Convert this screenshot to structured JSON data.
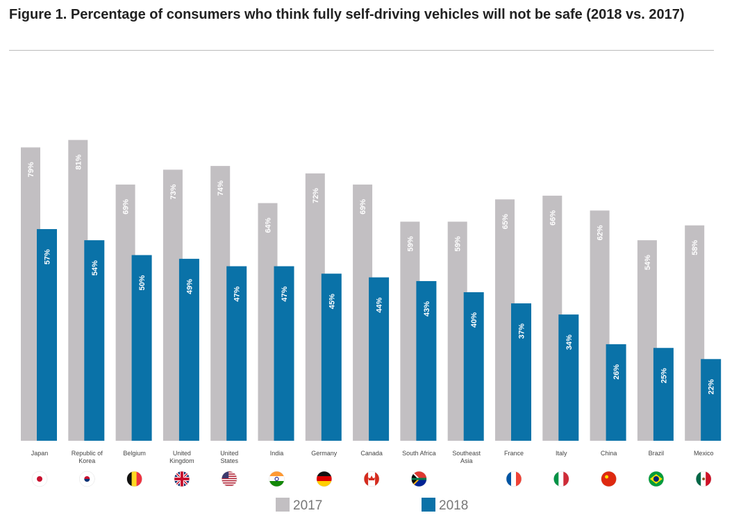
{
  "chart_data": {
    "type": "bar",
    "title": "Figure 1. Percentage of consumers who think fully self-driving vehicles will not be safe (2018 vs. 2017)",
    "categories": [
      "Japan",
      "Republic of Korea",
      "Belgium",
      "United Kingdom",
      "United States",
      "India",
      "Germany",
      "Canada",
      "South Africa",
      "Southeast Asia",
      "France",
      "Italy",
      "China",
      "Brazil",
      "Mexico"
    ],
    "series": [
      {
        "name": "2017",
        "color": "#c2bfc2",
        "values": [
          79,
          81,
          69,
          73,
          74,
          64,
          72,
          69,
          59,
          59,
          65,
          66,
          62,
          54,
          58
        ]
      },
      {
        "name": "2018",
        "color": "#0a72a8",
        "values": [
          57,
          54,
          50,
          49,
          47,
          47,
          45,
          44,
          43,
          40,
          37,
          34,
          26,
          25,
          22
        ]
      }
    ],
    "value_format": "percent",
    "ylim": [
      0,
      100
    ],
    "grid": false,
    "legend_placement": "bottom",
    "flags": [
      "japan",
      "south-korea",
      "belgium",
      "united-kingdom",
      "united-states",
      "india",
      "germany",
      "canada",
      "south-africa",
      "",
      "france",
      "italy",
      "china",
      "brazil",
      "mexico"
    ]
  }
}
